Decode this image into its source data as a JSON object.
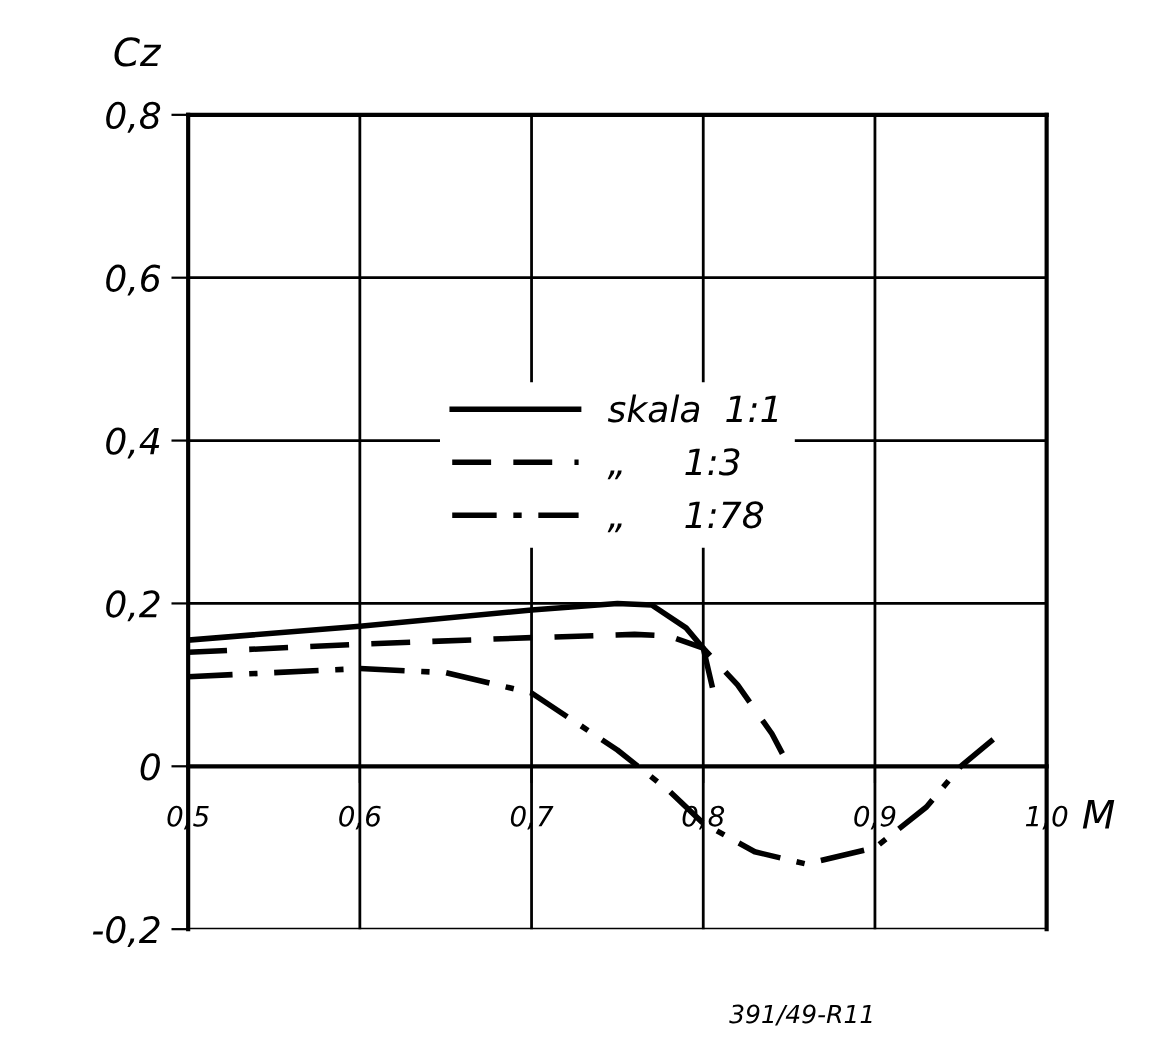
{
  "chart_data": {
    "type": "line",
    "xlabel": "M",
    "ylabel": "Cz",
    "xlim": [
      0.5,
      1.0
    ],
    "ylim": [
      -0.2,
      0.8
    ],
    "xticks": [
      {
        "value": 0.5,
        "label": "0,5"
      },
      {
        "value": 0.6,
        "label": "0,6"
      },
      {
        "value": 0.7,
        "label": "0,7"
      },
      {
        "value": 0.8,
        "label": "0,8"
      },
      {
        "value": 0.9,
        "label": "0,9"
      },
      {
        "value": 1.0,
        "label": "1,0"
      }
    ],
    "yticks": [
      {
        "value": -0.2,
        "label": "-0,2"
      },
      {
        "value": 0,
        "label": "0"
      },
      {
        "value": 0.2,
        "label": "0,2"
      },
      {
        "value": 0.4,
        "label": "0,4"
      },
      {
        "value": 0.6,
        "label": "0,6"
      },
      {
        "value": 0.8,
        "label": "0,8"
      }
    ],
    "grid": true,
    "legend": "center",
    "marker": "none",
    "series": [
      {
        "name": "skala  1:1",
        "color": "#000000",
        "line_style": "solid",
        "x": [
          0.5,
          0.6,
          0.7,
          0.75,
          0.77,
          0.79,
          0.8,
          0.805
        ],
        "values": [
          0.155,
          0.172,
          0.192,
          0.2,
          0.198,
          0.17,
          0.145,
          0.1
        ]
      },
      {
        "name": "„     1:3",
        "color": "#000000",
        "line_style": "dashed",
        "x": [
          0.5,
          0.6,
          0.7,
          0.76,
          0.78,
          0.8,
          0.82,
          0.84,
          0.85
        ],
        "values": [
          0.14,
          0.15,
          0.158,
          0.162,
          0.16,
          0.145,
          0.1,
          0.04,
          0
        ]
      },
      {
        "name": "„     1:78",
        "color": "#000000",
        "line_style": "dashdot",
        "x": [
          0.5,
          0.6,
          0.65,
          0.7,
          0.75,
          0.78,
          0.8,
          0.83,
          0.86,
          0.9,
          0.93,
          0.95,
          0.97
        ],
        "values": [
          0.11,
          0.12,
          0.115,
          0.09,
          0.02,
          -0.03,
          -0.07,
          -0.105,
          -0.12,
          -0.1,
          -0.05,
          0,
          0.035
        ]
      }
    ],
    "annotations": [
      "391/49-R11"
    ]
  }
}
